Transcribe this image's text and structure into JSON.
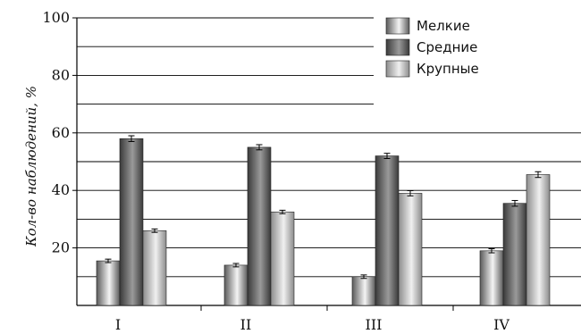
{
  "chart_data": {
    "type": "bar",
    "title": "",
    "xlabel": "",
    "ylabel": "Кол-во наблюдений, %",
    "ylim": [
      0,
      100
    ],
    "yticks": [
      20,
      40,
      60,
      80,
      100
    ],
    "grid": true,
    "gridlines_every": 10,
    "legend_position": "top-right",
    "categories": [
      "I",
      "II",
      "III",
      "IV"
    ],
    "series": [
      {
        "name": "Мелкие",
        "values": [
          15.5,
          14.0,
          10.0,
          19.0
        ],
        "errors": [
          0.6,
          0.6,
          0.6,
          0.7
        ],
        "color_dark": "#5a5a5a",
        "color_light": "#f4f4f4"
      },
      {
        "name": "Средние",
        "values": [
          58.0,
          55.0,
          52.0,
          35.5
        ],
        "errors": [
          1.0,
          0.9,
          0.9,
          1.0
        ],
        "color_dark": "#3a3a3a",
        "color_light": "#9a9a9a"
      },
      {
        "name": "Крупные",
        "values": [
          26.0,
          32.5,
          39.0,
          45.5
        ],
        "errors": [
          0.6,
          0.6,
          0.9,
          1.0
        ],
        "color_dark": "#8c8c8c",
        "color_light": "#f0f0f0"
      }
    ]
  }
}
